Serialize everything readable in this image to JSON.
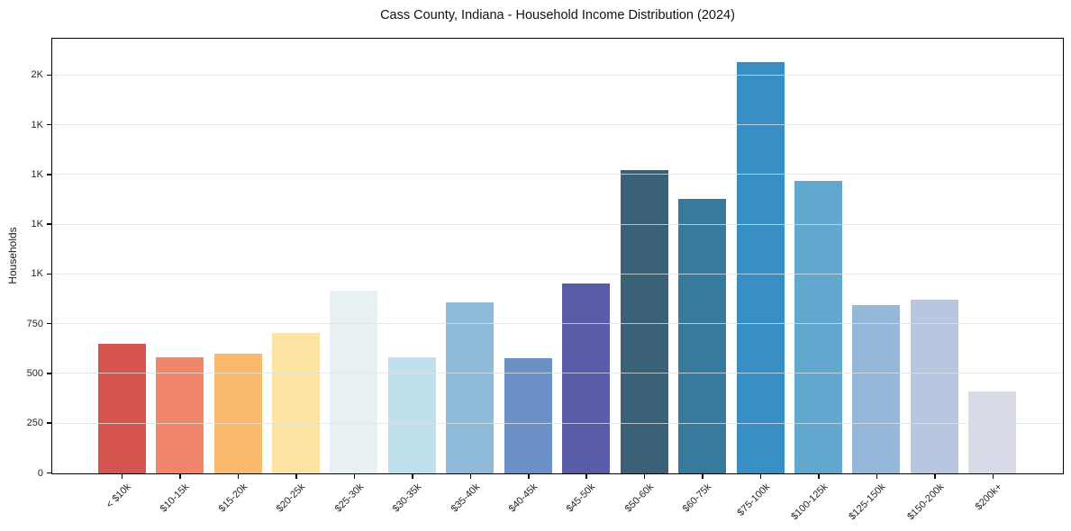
{
  "chart_data": {
    "type": "bar",
    "title": "Cass County, Indiana - Household Income Distribution (2024)",
    "xlabel": "",
    "ylabel": "Households",
    "categories": [
      "< $10k",
      "$10-15k",
      "$15-20k",
      "$20-25k",
      "$25-30k",
      "$30-35k",
      "$35-40k",
      "$40-45k",
      "$45-50k",
      "$50-60k",
      "$60-75k",
      "$75-100k",
      "$100-125k",
      "$125-150k",
      "$150-200k",
      "$200k+"
    ],
    "values": [
      650,
      585,
      600,
      705,
      920,
      585,
      860,
      580,
      955,
      1525,
      1380,
      2065,
      1470,
      845,
      875,
      410
    ],
    "bar_colors": [
      "#d6544f",
      "#f1866a",
      "#fbb96e",
      "#fde3a2",
      "#e7f1f4",
      "#bfe0ec",
      "#90bada",
      "#6a90c6",
      "#5a5ba9",
      "#3a6175",
      "#38799e",
      "#388fc4",
      "#62a7cd",
      "#96b8d8",
      "#b8c7df",
      "#d8dae8"
    ],
    "ylim": [
      0,
      2180
    ],
    "yticks": [
      {
        "value": 0,
        "label": "0"
      },
      {
        "value": 250,
        "label": "250"
      },
      {
        "value": 500,
        "label": "500"
      },
      {
        "value": 750,
        "label": "750"
      },
      {
        "value": 1000,
        "label": "1K"
      },
      {
        "value": 1250,
        "label": "1K"
      },
      {
        "value": 1500,
        "label": "1K"
      },
      {
        "value": 1750,
        "label": "1K"
      },
      {
        "value": 2000,
        "label": "2K"
      }
    ],
    "grid": "horizontal",
    "legend": "none",
    "colors": {
      "background": "#ffffff",
      "spine": "#000000",
      "gridline": "#e8eaec",
      "text": "#262626"
    }
  }
}
